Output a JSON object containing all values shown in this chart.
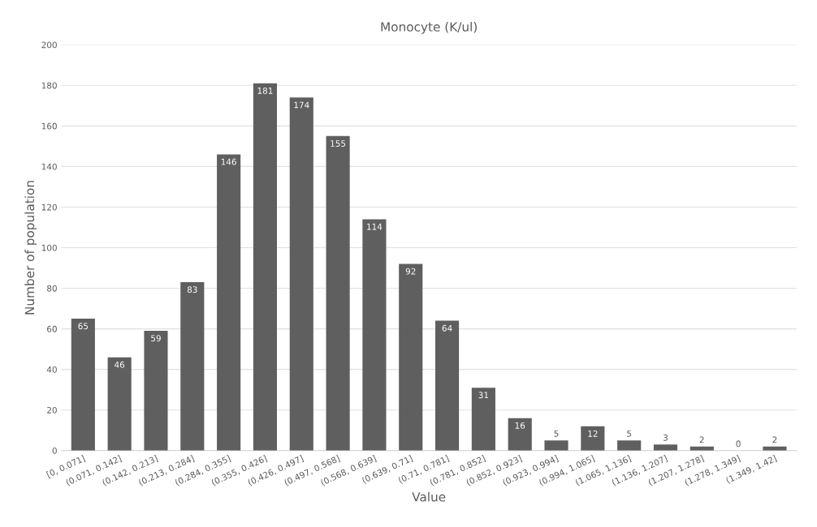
{
  "chart_data": {
    "type": "bar",
    "title": "Monocyte (K/ul)",
    "xlabel": "Value",
    "ylabel": "Number of population",
    "categories": [
      "[0, 0.071]",
      "(0.071, 0.142]",
      "(0.142, 0.213]",
      "(0.213, 0.284]",
      "(0.284, 0.355]",
      "(0.355, 0.426]",
      "(0.426, 0.497]",
      "(0.497, 0.568]",
      "(0.568, 0.639]",
      "(0.639, 0.71]",
      "(0.71, 0.781]",
      "(0.781, 0.852]",
      "(0.852, 0.923]",
      "(0.923, 0.994]",
      "(0.994, 1.065]",
      "(1.065, 1.136]",
      "(1.136, 1.207]",
      "(1.207, 1.278]",
      "(1.278, 1.349]",
      "(1.349, 1.42]"
    ],
    "values": [
      65,
      46,
      59,
      83,
      146,
      181,
      174,
      155,
      114,
      92,
      64,
      31,
      16,
      5,
      12,
      5,
      3,
      2,
      0,
      2
    ],
    "color": "#5f5f5f",
    "ylim": [
      0,
      200
    ],
    "yticks": [
      0,
      20,
      40,
      60,
      80,
      100,
      120,
      140,
      160,
      180,
      200
    ],
    "grid": "y",
    "data_labels": true
  }
}
